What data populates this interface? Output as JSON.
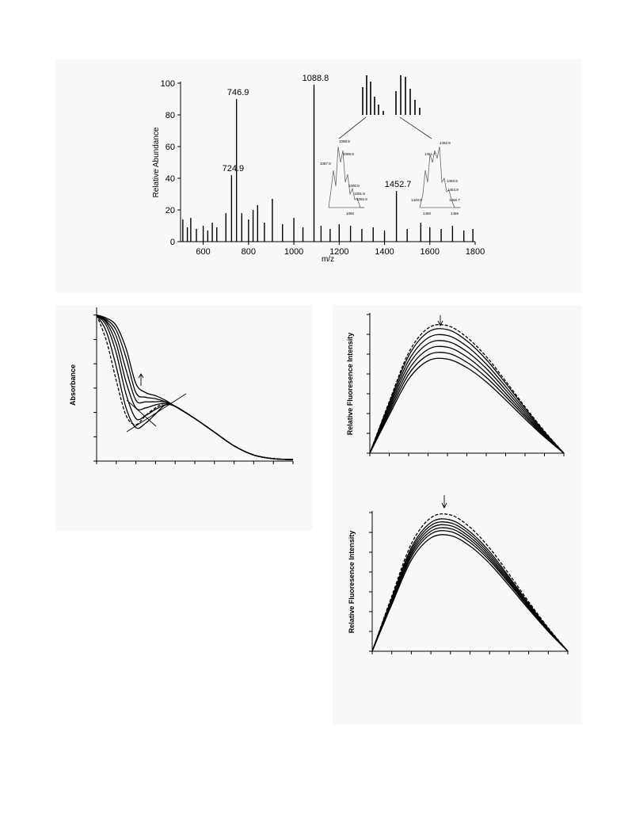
{
  "chart_data": [
    {
      "type": "stem",
      "ylabel": "Relative Abundance",
      "xlabel": "m/z",
      "xlim": [
        500,
        1800
      ],
      "ylim": [
        0,
        100
      ],
      "xticks": [
        600,
        800,
        1000,
        1200,
        1400,
        1600,
        1800
      ],
      "yticks": [
        0,
        20,
        40,
        60,
        80,
        100
      ],
      "color": "#000000",
      "x": [
        510,
        530,
        545,
        570,
        600,
        620,
        640,
        660,
        700,
        724.9,
        746.9,
        770,
        800,
        820,
        840,
        870,
        905,
        950,
        1000,
        1040,
        1088.8,
        1120,
        1160,
        1200,
        1250,
        1300,
        1350,
        1400,
        1452.7,
        1500,
        1560,
        1600,
        1650,
        1700,
        1750,
        1790
      ],
      "values": [
        14,
        9,
        15,
        8,
        10,
        7,
        12,
        9,
        18,
        42,
        90,
        18,
        14,
        20,
        23,
        12,
        27,
        11,
        15,
        9,
        99,
        10,
        8,
        11,
        10,
        8,
        9,
        7,
        32,
        8,
        12,
        9,
        8,
        10,
        7,
        8
      ],
      "annotations": [
        {
          "text": "724.9",
          "x": 724.9,
          "y": 42
        },
        {
          "text": "746.9",
          "x": 746.9,
          "y": 90
        },
        {
          "text": "1088.8",
          "x": 1088.8,
          "y": 99
        },
        {
          "text": "1452.7",
          "x": 1452.7,
          "y": 32
        }
      ],
      "insets": [
        {
          "labels": [
            "1087.9",
            "1088.9",
            "1089.9",
            "1090.9",
            "1091.9",
            "1092.9"
          ],
          "axis_labels": [
            "1090"
          ]
        },
        {
          "labels": [
            "1449.5",
            "1451.7",
            "1452.9",
            "1453.9",
            "1454.9",
            "1456.7"
          ],
          "axis_labels": [
            "1450",
            "1455"
          ]
        }
      ]
    },
    {
      "type": "line",
      "ylabel": "Absorbance",
      "show_tick_labels": false,
      "xlim": [
        0,
        10
      ],
      "ylim": [
        0,
        1
      ],
      "xticks": [
        0,
        1,
        2,
        3,
        4,
        5,
        6,
        7,
        8,
        9,
        10
      ],
      "yticks": [
        0,
        0.16,
        0.32,
        0.48,
        0.64,
        0.8,
        0.96
      ],
      "x": [
        0,
        0.5,
        1,
        1.5,
        2,
        2.5,
        3,
        3.5,
        4,
        5,
        6,
        7,
        8,
        9,
        10
      ],
      "series": [
        {
          "color": "#000000",
          "dash": false,
          "values": [
            0.96,
            0.94,
            0.89,
            0.74,
            0.51,
            0.45,
            0.43,
            0.4,
            0.36,
            0.28,
            0.19,
            0.1,
            0.04,
            0.016,
            0.01
          ]
        },
        {
          "color": "#000000",
          "dash": false,
          "values": [
            0.96,
            0.93,
            0.86,
            0.68,
            0.45,
            0.42,
            0.41,
            0.39,
            0.36,
            0.28,
            0.19,
            0.1,
            0.04,
            0.016,
            0.01
          ]
        },
        {
          "color": "#000000",
          "dash": false,
          "values": [
            0.96,
            0.92,
            0.82,
            0.6,
            0.4,
            0.39,
            0.39,
            0.39,
            0.36,
            0.28,
            0.19,
            0.1,
            0.04,
            0.016,
            0.01
          ]
        },
        {
          "color": "#000000",
          "dash": false,
          "values": [
            0.96,
            0.91,
            0.77,
            0.52,
            0.35,
            0.35,
            0.37,
            0.38,
            0.36,
            0.28,
            0.19,
            0.1,
            0.04,
            0.016,
            0.01
          ]
        },
        {
          "color": "#000000",
          "dash": false,
          "values": [
            0.96,
            0.89,
            0.71,
            0.44,
            0.28,
            0.3,
            0.34,
            0.37,
            0.36,
            0.28,
            0.19,
            0.1,
            0.04,
            0.016,
            0.01
          ]
        },
        {
          "color": "#000000",
          "dash": false,
          "values": [
            0.96,
            0.85,
            0.62,
            0.35,
            0.22,
            0.25,
            0.31,
            0.37,
            0.36,
            0.28,
            0.19,
            0.1,
            0.04,
            0.016,
            0.01
          ]
        },
        {
          "color": "#000000",
          "dash": true,
          "values": [
            0.96,
            0.79,
            0.53,
            0.3,
            0.24,
            0.3,
            0.35,
            0.38,
            0.36,
            0.28,
            0.19,
            0.1,
            0.04,
            0.016,
            0.01
          ]
        }
      ]
    },
    {
      "type": "line",
      "ylabel": "Relative Fluoresence Intensity",
      "show_tick_labels": false,
      "xlim": [
        0,
        10
      ],
      "ylim": [
        0,
        7
      ],
      "xticks": [
        0,
        1,
        2,
        3,
        4,
        5,
        6,
        7,
        8,
        9,
        10
      ],
      "yticks": [
        0,
        1,
        2,
        3,
        4,
        5,
        6,
        7
      ],
      "x": [
        0,
        1,
        2,
        3,
        4,
        5,
        6,
        7,
        8,
        9,
        10
      ],
      "series": [
        {
          "color": "#000000",
          "dash": true,
          "values": [
            0,
            2.6,
            5.07,
            6.31,
            6.44,
            5.85,
            4.88,
            3.64,
            2.34,
            1.11,
            0
          ]
        },
        {
          "color": "#000000",
          "dash": false,
          "values": [
            0,
            2.52,
            4.91,
            6.11,
            6.24,
            5.67,
            4.73,
            3.53,
            2.27,
            1.07,
            0
          ]
        },
        {
          "color": "#000000",
          "dash": false,
          "values": [
            0,
            2.4,
            4.68,
            5.82,
            5.94,
            5.4,
            4.5,
            3.36,
            2.16,
            1.02,
            0
          ]
        },
        {
          "color": "#000000",
          "dash": false,
          "values": [
            0,
            2.28,
            4.45,
            5.53,
            5.64,
            5.13,
            4.28,
            3.19,
            2.05,
            0.97,
            0
          ]
        },
        {
          "color": "#000000",
          "dash": false,
          "values": [
            0,
            2.16,
            4.21,
            5.24,
            5.35,
            4.86,
            4.05,
            3.02,
            1.94,
            0.92,
            0
          ]
        },
        {
          "color": "#000000",
          "dash": false,
          "values": [
            0,
            2.04,
            3.98,
            4.95,
            5.05,
            4.59,
            3.83,
            2.86,
            1.84,
            0.87,
            0
          ]
        },
        {
          "color": "#000000",
          "dash": false,
          "values": [
            0,
            1.92,
            3.74,
            4.66,
            4.75,
            4.32,
            3.6,
            2.69,
            1.73,
            0.82,
            0
          ]
        }
      ]
    },
    {
      "type": "line",
      "ylabel": "Relative Fluoresence Intensity",
      "show_tick_labels": false,
      "xlim": [
        0,
        10
      ],
      "ylim": [
        0,
        7
      ],
      "xticks": [
        0,
        1,
        2,
        3,
        4,
        5,
        6,
        7,
        8,
        9,
        10
      ],
      "yticks": [
        0,
        1,
        2,
        3,
        4,
        5,
        6,
        7
      ],
      "x": [
        0,
        1,
        2,
        3,
        4,
        5,
        6,
        7,
        8,
        9,
        10
      ],
      "series": [
        {
          "color": "#000000",
          "dash": true,
          "values": [
            0,
            2.78,
            5.42,
            6.74,
            6.88,
            6.26,
            5.21,
            3.89,
            2.5,
            1.18,
            0
          ]
        },
        {
          "color": "#000000",
          "dash": false,
          "values": [
            0,
            2.68,
            5.23,
            6.5,
            6.63,
            6.03,
            5.03,
            3.75,
            2.41,
            1.14,
            0
          ]
        },
        {
          "color": "#000000",
          "dash": false,
          "values": [
            0,
            2.62,
            5.11,
            6.35,
            6.48,
            5.9,
            4.91,
            3.67,
            2.36,
            1.11,
            0
          ]
        },
        {
          "color": "#000000",
          "dash": false,
          "values": [
            0,
            2.56,
            4.99,
            6.21,
            6.34,
            5.76,
            4.8,
            3.58,
            2.3,
            1.09,
            0
          ]
        },
        {
          "color": "#000000",
          "dash": false,
          "values": [
            0,
            2.5,
            4.88,
            6.06,
            6.19,
            5.63,
            4.69,
            3.5,
            2.25,
            1.06,
            0
          ]
        },
        {
          "color": "#000000",
          "dash": false,
          "values": [
            0,
            2.44,
            4.76,
            5.92,
            6.04,
            5.49,
            4.58,
            3.42,
            2.2,
            1.04,
            0
          ]
        },
        {
          "color": "#000000",
          "dash": false,
          "values": [
            0,
            2.36,
            4.6,
            5.72,
            5.84,
            5.31,
            4.43,
            3.3,
            2.12,
            1,
            0
          ]
        }
      ]
    }
  ]
}
